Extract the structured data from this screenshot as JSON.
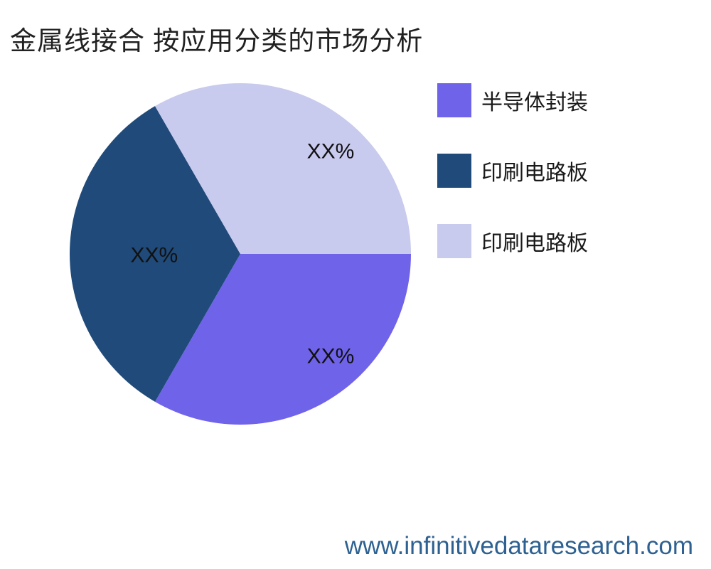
{
  "title": "金属线接合 按应用分类的市场分析",
  "footer": {
    "url": "www.infinitivedataresearch.com",
    "color": "#2E6191"
  },
  "chart_data": {
    "type": "pie",
    "title": "金属线接合 按应用分类的市场分析",
    "legend_position": "right",
    "background": "#ffffff",
    "slices": [
      {
        "label": "半导体封装",
        "value_label": "XX%",
        "fraction": 0.3333,
        "color": "#6F63EA",
        "start_angle_deg": 0,
        "end_angle_deg": 120
      },
      {
        "label": "印刷电路板",
        "value_label": "XX%",
        "fraction": 0.3333,
        "color": "#1F4A79",
        "start_angle_deg": 120,
        "end_angle_deg": 240
      },
      {
        "label": "印刷电路板",
        "value_label": "XX%",
        "fraction": 0.3334,
        "color": "#C8CAEE",
        "start_angle_deg": 240,
        "end_angle_deg": 360
      }
    ]
  }
}
